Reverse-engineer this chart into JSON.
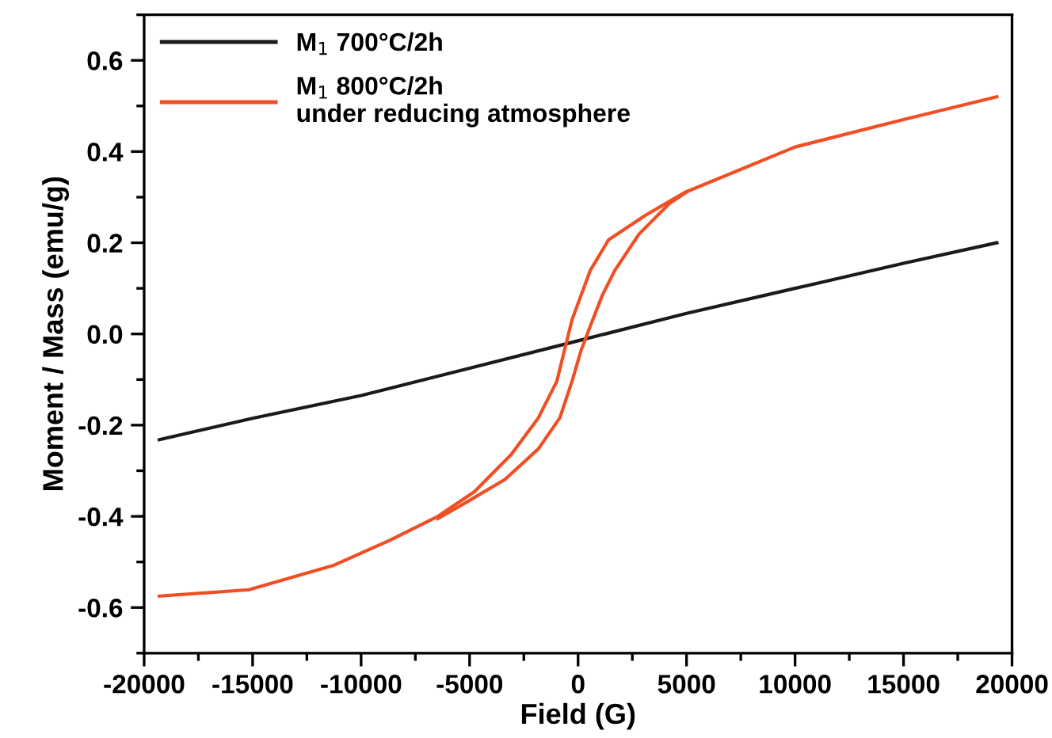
{
  "chart_data": {
    "type": "line",
    "xlabel": "Field (G)",
    "ylabel": "Moment / Mass (emu/g)",
    "xlim": [
      -20000,
      20000
    ],
    "ylim": [
      -0.7,
      0.7
    ],
    "xticks": [
      -20000,
      -15000,
      -10000,
      -5000,
      0,
      5000,
      10000,
      15000,
      20000
    ],
    "yticks": [
      -0.6,
      -0.4,
      -0.2,
      {
        "value": 0,
        "label": "0.0"
      },
      0.2,
      0.4,
      0.6
    ],
    "legend": "top left",
    "grid": false,
    "marker": "none",
    "line_style": "solid",
    "series": [
      {
        "name": "M$_{1}$ 700°C/2h",
        "color": "#1a1a1a",
        "x": [
          -19300,
          -15000,
          -10000,
          -5000,
          0,
          5000,
          10000,
          15000,
          19300
        ],
        "values": [
          -0.232,
          -0.185,
          -0.135,
          -0.075,
          -0.015,
          0.045,
          0.1,
          0.155,
          0.2
        ]
      },
      {
        "name": "M$_{1}$ 800°C/2h\nunder reducing atmosphere",
        "color": "#f04e23",
        "x": [
          -19300,
          -15170,
          -11240,
          -8700,
          -6460,
          -4780,
          -3090,
          -1830,
          -980,
          -560,
          -280,
          140,
          560,
          1400,
          3100,
          4900,
          10000,
          15000,
          19300
        ],
        "values": [
          -0.575,
          -0.561,
          -0.507,
          -0.453,
          -0.4,
          -0.346,
          -0.265,
          -0.184,
          -0.104,
          -0.023,
          0.031,
          0.085,
          0.139,
          0.206,
          0.26,
          0.31,
          0.41,
          0.47,
          0.52
        ]
      },
      {
        "color": "#f04e23",
        "x": [
          -6460,
          -5000,
          -3370,
          -1830,
          -840,
          -280,
          140,
          560,
          1120,
          1690,
          2810,
          4210,
          5060
        ],
        "values": [
          -0.405,
          -0.365,
          -0.319,
          -0.252,
          -0.184,
          -0.104,
          -0.036,
          0.017,
          0.085,
          0.139,
          0.219,
          0.286,
          0.313
        ]
      }
    ]
  }
}
